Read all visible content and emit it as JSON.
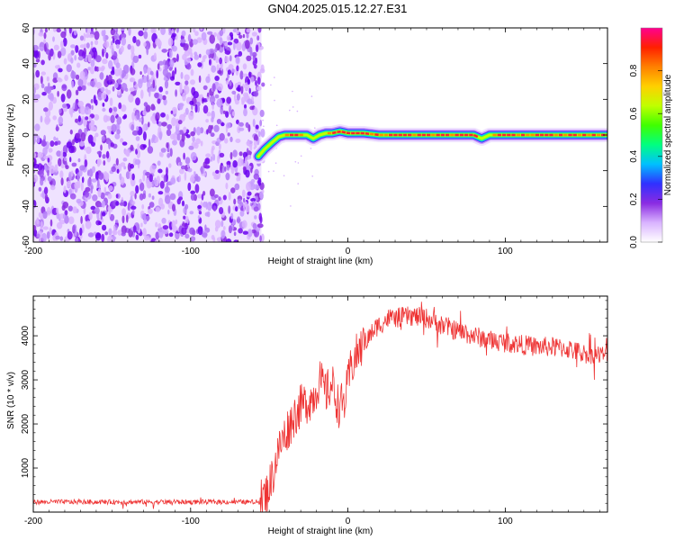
{
  "title": "GN04.2025.015.12.27.E31",
  "chart_data": [
    {
      "type": "heatmap",
      "xlabel": "Height of straight line (km)",
      "ylabel": "Frequency (Hz)",
      "xlim": [
        -200,
        165
      ],
      "ylim": [
        -60,
        60
      ],
      "x_ticks": [
        -200,
        -100,
        0,
        100
      ],
      "y_ticks": [
        -60,
        -40,
        -20,
        0,
        20,
        40,
        60
      ],
      "noise_region_x": [
        -200,
        -55
      ],
      "ridge": {
        "x": [
          -57,
          -53,
          -48,
          -44,
          -40,
          -35,
          -30,
          -26,
          -22,
          -18,
          -14,
          -10,
          -5,
          0,
          10,
          20,
          40,
          60,
          80,
          85,
          90,
          100,
          120,
          140,
          165
        ],
        "y": [
          -12,
          -8,
          -4,
          -1,
          0,
          0,
          0,
          0,
          -2,
          0,
          1,
          1,
          2,
          1,
          1,
          0,
          0,
          0,
          0,
          -2,
          0,
          0,
          0,
          0,
          0
        ]
      },
      "colorbar": {
        "label": "Normalized spectral amplitude",
        "ticks": [
          0.0,
          0.2,
          0.4,
          0.6,
          0.8
        ],
        "range": [
          0,
          1
        ],
        "colors": [
          "#ffffff",
          "#d9b3ff",
          "#8a2be2",
          "#3030ff",
          "#00c0ff",
          "#00ff80",
          "#40ff00",
          "#c0ff00",
          "#ffd000",
          "#ff8000",
          "#ff2000",
          "#ff0090"
        ]
      }
    },
    {
      "type": "line",
      "xlabel": "Height of straight line (km)",
      "ylabel": "SNR (10 * v/v)",
      "xlim": [
        -200,
        165
      ],
      "ylim": [
        0,
        4900
      ],
      "x_ticks": [
        -200,
        -100,
        0,
        100
      ],
      "y_ticks": [
        1000,
        2000,
        3000,
        4000
      ],
      "color": "#ee3333",
      "envelope": {
        "x": [
          -200,
          -150,
          -100,
          -56,
          -52,
          -48,
          -45,
          -42,
          -38,
          -34,
          -30,
          -26,
          -22,
          -18,
          -14,
          -10,
          -6,
          -2,
          2,
          6,
          10,
          14,
          18,
          22,
          26,
          30,
          40,
          50,
          60,
          70,
          80,
          90,
          100,
          110,
          120,
          130,
          140,
          150,
          165
        ],
        "y": [
          230,
          230,
          230,
          230,
          400,
          800,
          1300,
          1600,
          1900,
          2200,
          2400,
          2500,
          2600,
          3000,
          2700,
          2900,
          2400,
          2500,
          3300,
          3600,
          3800,
          4000,
          4200,
          4300,
          4400,
          4400,
          4450,
          4400,
          4250,
          4100,
          4000,
          3900,
          3850,
          3800,
          3750,
          3750,
          3700,
          3600,
          3550
        ]
      }
    }
  ]
}
